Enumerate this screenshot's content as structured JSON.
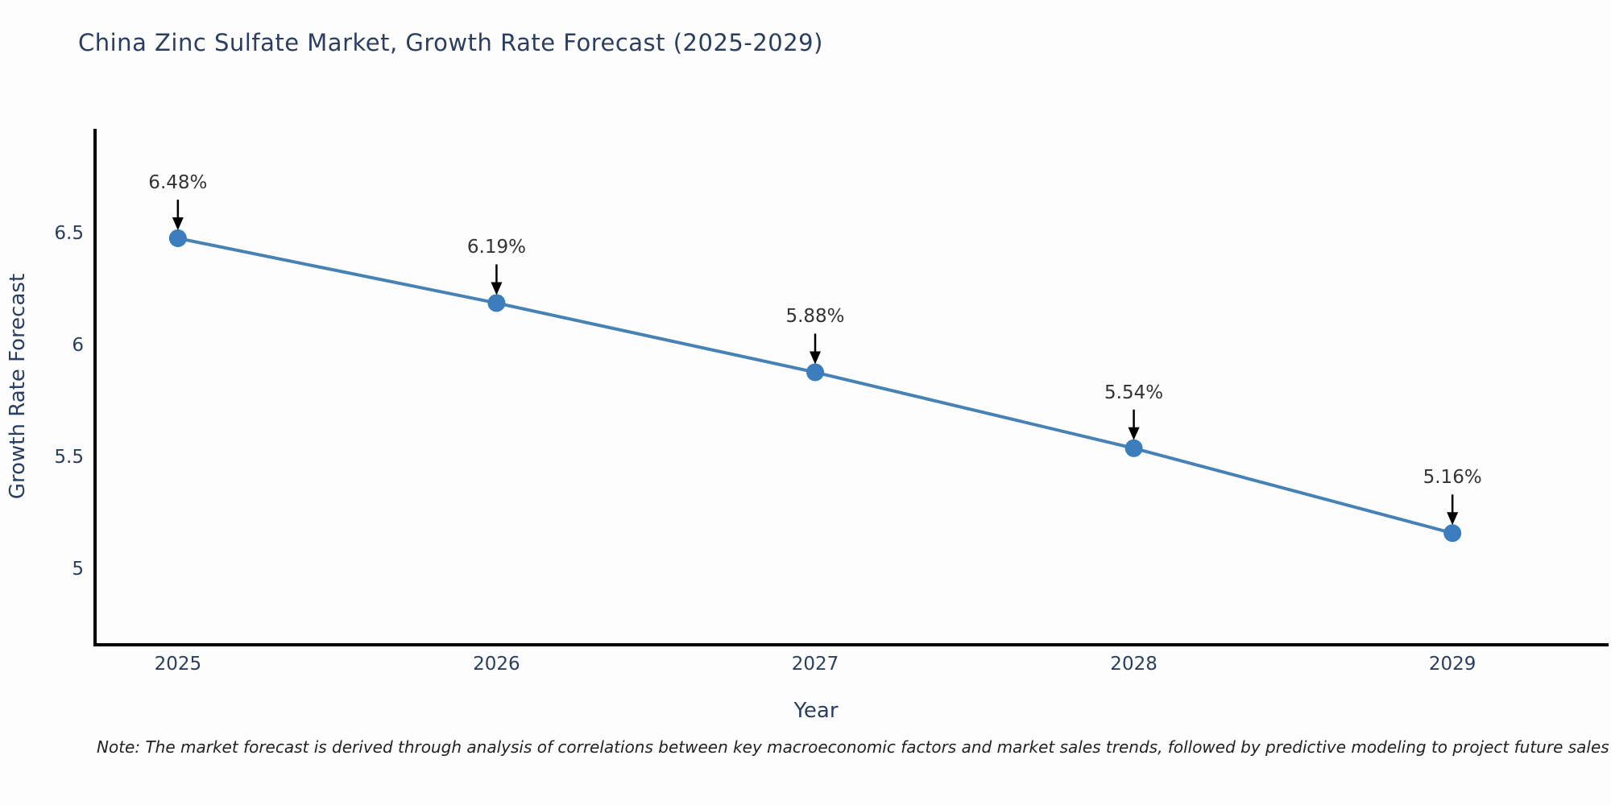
{
  "title": "China Zinc Sulfate Market, Growth Rate Forecast (2025-2029)",
  "note": "Note: The market forecast is derived through analysis of correlations between key macroeconomic factors and market sales trends, followed by predictive modeling to project future sales",
  "colors": {
    "line": "#4682b4",
    "marker": "#3b7dbd",
    "axis": "#000000",
    "arrow": "#000000",
    "text": "#2a3f5f",
    "annotation": "#333333",
    "background": "#fdfdfd"
  },
  "chart_data": {
    "type": "line",
    "title": "China Zinc Sulfate Market, Growth Rate Forecast (2025-2029)",
    "xlabel": "Year",
    "ylabel": "Growth Rate Forecast",
    "x": [
      2025,
      2026,
      2027,
      2028,
      2029
    ],
    "y": [
      6.48,
      6.19,
      5.88,
      5.54,
      5.16
    ],
    "point_labels": [
      "6.48%",
      "6.19%",
      "5.88%",
      "5.54%",
      "5.16%"
    ],
    "xtick_labels": [
      "2025",
      "2026",
      "2027",
      "2028",
      "2029"
    ],
    "ytick_values": [
      5,
      5.5,
      6,
      6.5
    ],
    "ytick_labels": [
      "5",
      "5.5",
      "6",
      "6.5"
    ],
    "xlim": [
      2024.74,
      2029.49
    ],
    "ylim": [
      4.66,
      6.97
    ],
    "grid": false,
    "legend": "none",
    "annotations_have_arrows": true
  }
}
